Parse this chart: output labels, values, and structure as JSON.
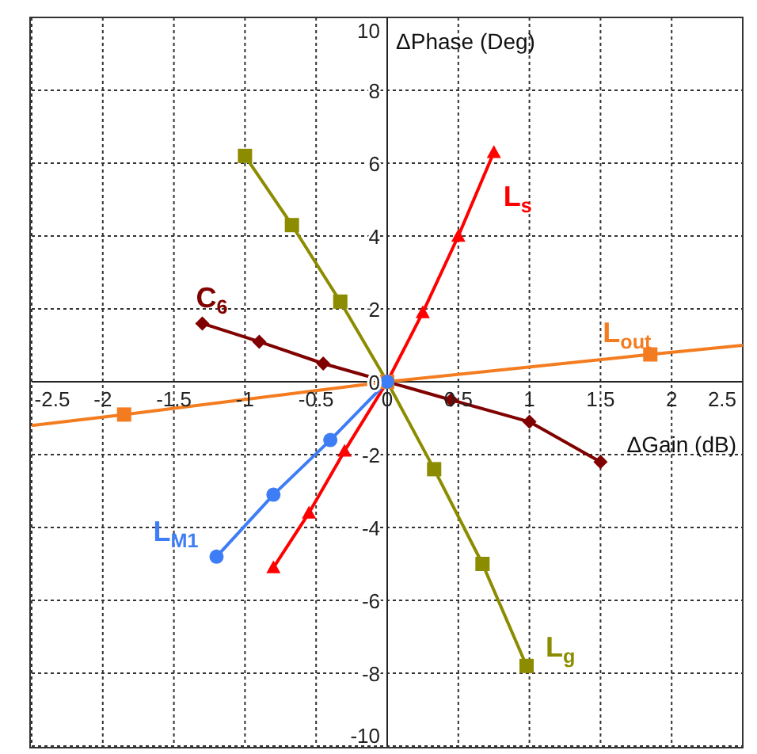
{
  "chart_data": {
    "type": "line",
    "ylabel": "ΔPhase (Deg)",
    "xlabel": "ΔGain (dB)",
    "xlim": [
      -2.5,
      2.5
    ],
    "xticks": [
      -2.5,
      -2,
      -1.5,
      -1,
      -0.5,
      0,
      0.5,
      1,
      1.5,
      2,
      2.5
    ],
    "ylim": [
      -10,
      10
    ],
    "yticks": [
      -10,
      -8,
      -6,
      -4,
      -2,
      0,
      2,
      4,
      6,
      8,
      10
    ],
    "grid": true,
    "legend": false,
    "series": [
      {
        "name": "L$_{g}$",
        "color": "#8c8c00",
        "marker": "square",
        "x": [
          -1.0,
          -0.67,
          -0.33,
          0,
          0.33,
          0.67,
          0.98
        ],
        "values": [
          6.2,
          4.3,
          2.2,
          0,
          -2.4,
          -5.0,
          -7.8
        ]
      },
      {
        "name": "L$_{s}$",
        "color": "#ff0000",
        "marker": "triangle",
        "x": [
          -0.8,
          -0.55,
          -0.3,
          0,
          0.25,
          0.5,
          0.75
        ],
        "values": [
          -5.1,
          -3.6,
          -1.9,
          0,
          1.9,
          4.0,
          6.3
        ]
      },
      {
        "name": "C$_{6}$",
        "color": "#800000",
        "marker": "diamond",
        "x": [
          -1.3,
          -0.9,
          -0.45,
          0,
          0.45,
          1.0,
          1.5
        ],
        "values": [
          1.6,
          1.1,
          0.5,
          0,
          -0.5,
          -1.1,
          -2.2
        ]
      },
      {
        "name": "L$_{out}$",
        "color": "#f47c20",
        "marker": "none",
        "x": [
          -2.5,
          -1.85,
          0,
          1.85,
          2.5
        ],
        "values": [
          -1.2,
          -0.9,
          0,
          0.75,
          1.0
        ]
      },
      {
        "type": "scatter",
        "color": "#f47c20",
        "marker": "square",
        "x": [
          -1.85,
          0,
          1.85
        ],
        "values": [
          -0.9,
          0,
          0.75
        ]
      },
      {
        "name": "L$_{M1}$",
        "color": "#3d7df5",
        "marker": "circle",
        "x": [
          -1.2,
          -0.8,
          -0.4,
          0
        ],
        "values": [
          -4.8,
          -3.1,
          -1.6,
          0
        ]
      }
    ]
  }
}
